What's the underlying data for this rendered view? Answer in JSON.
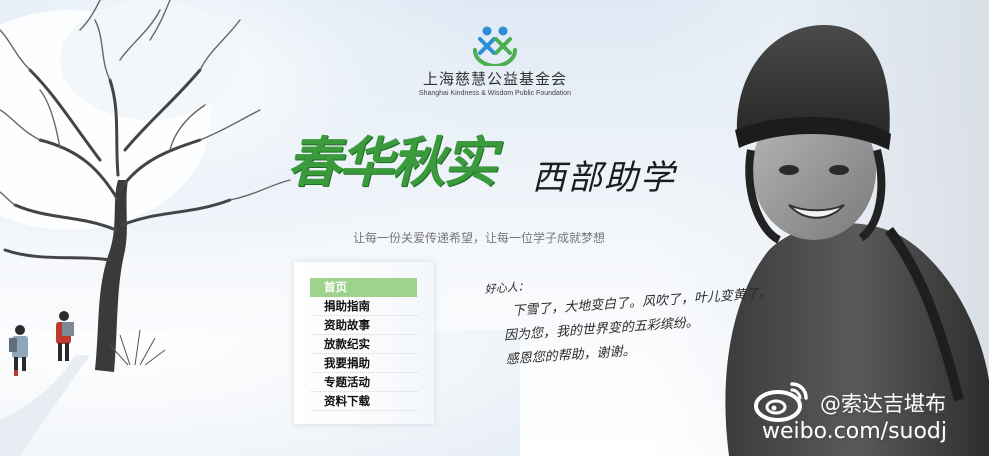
{
  "foundation": {
    "name": "上海慈慧公益基金会",
    "name_en": "Shanghai Kindness & Wisdom Public Foundation"
  },
  "headline": {
    "main": "春华秋实",
    "sub": "西部助学"
  },
  "slogan": "让每一份关爱传递希望，让每一位学子成就梦想",
  "nav": {
    "items": [
      {
        "label": "首页",
        "active": true
      },
      {
        "label": "捐助指南",
        "active": false
      },
      {
        "label": "资助故事",
        "active": false
      },
      {
        "label": "放款纪实",
        "active": false
      },
      {
        "label": "我要捐助",
        "active": false
      },
      {
        "label": "专题活动",
        "active": false
      },
      {
        "label": "资料下载",
        "active": false
      }
    ]
  },
  "note": {
    "greeting": "好心人：",
    "line1": "下雪了，大地变白了。风吹了，叶儿变黄了。",
    "line2": "因为您，我的世界变的五彩缤纷。",
    "line3": "感恩您的帮助，谢谢。"
  },
  "watermark": {
    "handle": "@索达吉堪布",
    "url": "weibo.com/suodj"
  },
  "colors": {
    "accent_green": "#3a9a3c",
    "nav_active": "#9ed38e",
    "logo_blue": "#2a8fd8"
  }
}
